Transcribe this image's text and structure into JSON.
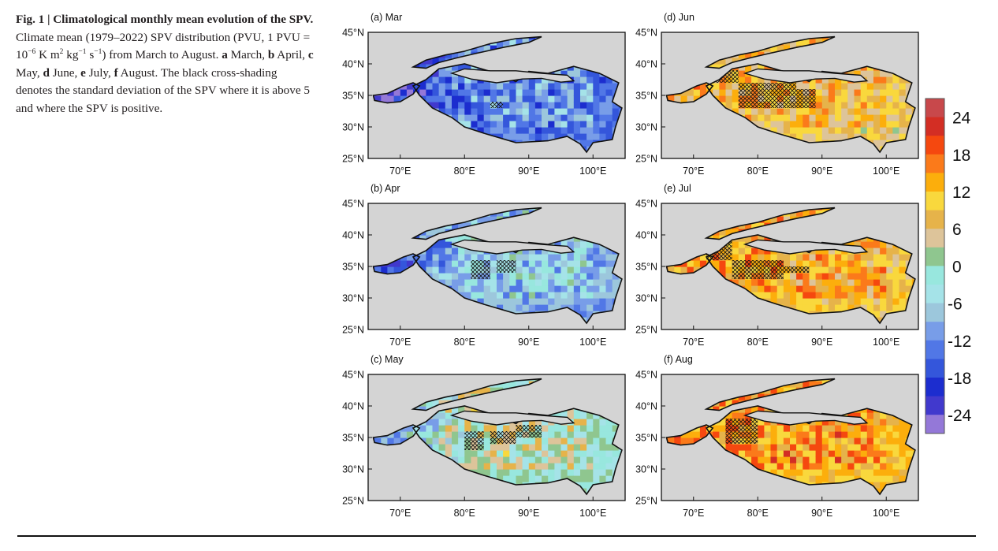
{
  "caption": {
    "fig_label": "Fig. 1 | Climatological monthly mean evolution of the SPV.",
    "text_1": " Climate mean (1979–2022) SPV distribution (PVU, 1 PVU = 10",
    "sup_1": "−6",
    "text_2": " K m",
    "sup_2": "2",
    "text_3": " kg",
    "sup_3": "−1",
    "text_4": " s",
    "sup_4": "−1",
    "text_5": ") from March to August. ",
    "p_a": "a",
    "t_a": " March, ",
    "p_b": "b",
    "t_b": " April, ",
    "p_c": "c",
    "t_c": " May, ",
    "p_d": "d",
    "t_d": " June, ",
    "p_e": "e",
    "t_e": " July, ",
    "p_f": "f",
    "t_f": " August. The black cross-shading denotes the standard deviation of the SPV where it is above 5 and where the SPV is positive."
  },
  "chart_data": [
    {
      "type": "heatmap",
      "title": "(a) Mar",
      "x_ticks": [
        "70°E",
        "80°E",
        "90°E",
        "100°E"
      ],
      "y_ticks": [
        "45°N",
        "40°N",
        "35°N",
        "30°N",
        "25°N"
      ],
      "xlim": [
        65,
        105
      ],
      "ylim": [
        25,
        45
      ],
      "mean_level": -12,
      "hatch_regions": [
        [
          84,
          33,
          86,
          34
        ]
      ]
    },
    {
      "type": "heatmap",
      "title": "(b) Apr",
      "x_ticks": [
        "70°E",
        "80°E",
        "90°E",
        "100°E"
      ],
      "y_ticks": [
        "45°N",
        "40°N",
        "35°N",
        "30°N",
        "25°N"
      ],
      "xlim": [
        65,
        105
      ],
      "ylim": [
        25,
        45
      ],
      "mean_level": -7,
      "hatch_regions": [
        [
          81,
          33,
          84,
          36
        ],
        [
          85,
          34,
          88,
          36
        ]
      ]
    },
    {
      "type": "heatmap",
      "title": "(c) May",
      "x_ticks": [
        "70°E",
        "80°E",
        "90°E",
        "100°E"
      ],
      "y_ticks": [
        "45°N",
        "40°N",
        "35°N",
        "30°N",
        "25°N"
      ],
      "xlim": [
        65,
        105
      ],
      "ylim": [
        25,
        45
      ],
      "mean_level": 2,
      "hatch_regions": [
        [
          80,
          33,
          83,
          36
        ],
        [
          84,
          34,
          88,
          36
        ],
        [
          88,
          35,
          92,
          37
        ]
      ]
    },
    {
      "type": "heatmap",
      "title": "(d) Jun",
      "x_ticks": [
        "70°E",
        "80°E",
        "90°E",
        "100°E"
      ],
      "y_ticks": [
        "45°N",
        "40°N",
        "35°N",
        "30°N",
        "25°N"
      ],
      "xlim": [
        65,
        105
      ],
      "ylim": [
        25,
        45
      ],
      "mean_level": 11,
      "hatch_regions": [
        [
          73,
          37,
          77,
          39
        ],
        [
          77,
          33,
          86,
          37
        ],
        [
          86,
          33,
          89,
          36
        ]
      ]
    },
    {
      "type": "heatmap",
      "title": "(e) Jul",
      "x_ticks": [
        "70°E",
        "80°E",
        "90°E",
        "100°E"
      ],
      "y_ticks": [
        "45°N",
        "40°N",
        "35°N",
        "30°N",
        "25°N"
      ],
      "xlim": [
        65,
        105
      ],
      "ylim": [
        25,
        45
      ],
      "mean_level": 13,
      "hatch_regions": [
        [
          72,
          36,
          76,
          39
        ],
        [
          76,
          33,
          84,
          36
        ],
        [
          84,
          34,
          88,
          35
        ]
      ]
    },
    {
      "type": "heatmap",
      "title": "(f) Aug",
      "x_ticks": [
        "70°E",
        "80°E",
        "90°E",
        "100°E"
      ],
      "y_ticks": [
        "45°N",
        "40°N",
        "35°N",
        "30°N",
        "25°N"
      ],
      "xlim": [
        65,
        105
      ],
      "ylim": [
        25,
        45
      ],
      "mean_level": 15,
      "hatch_regions": [
        [
          75,
          34,
          80,
          38
        ]
      ]
    }
  ],
  "colorbar": {
    "labels": [
      "24",
      "18",
      "12",
      "6",
      "0",
      "-6",
      "-12",
      "-18",
      "-24"
    ],
    "colors": [
      "#c8484b",
      "#d32e24",
      "#f5480f",
      "#fb7a1a",
      "#fcae0c",
      "#f9d83d",
      "#e6b34a",
      "#ddc49a",
      "#8fc68f",
      "#98e7de",
      "#a5e3e8",
      "#9cc7dc",
      "#789de8",
      "#5177e6",
      "#3456db",
      "#1c2dcf",
      "#4139cd",
      "#9478d8"
    ]
  }
}
